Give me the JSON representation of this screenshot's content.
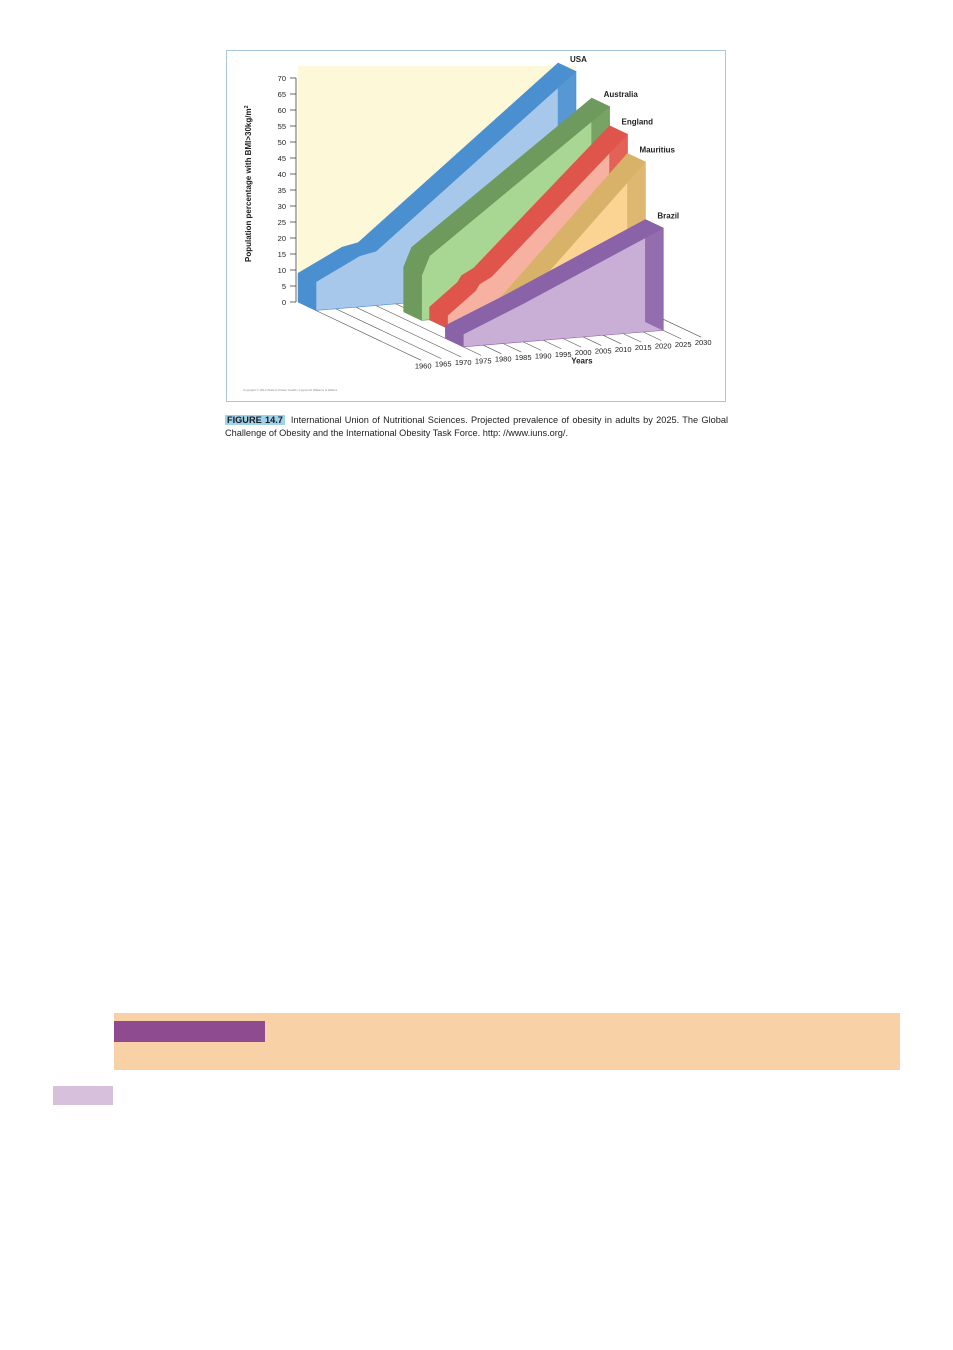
{
  "figure": {
    "label": "FIGURE 14.7",
    "caption": "International Union of Nutritional Sciences. Projected prevalence of obesity in adults by 2025. The Global Challenge of Obesity and the International Obesity Task Force. http: //www.iuns.org/.",
    "copyright": "Copyright © 2013 Wolters Kluwer Health | Lippincott Williams & Wilkins"
  },
  "chart_data": {
    "type": "area",
    "projection": "3d-depth",
    "ylabel": "Population percentage with BMI>30kg/m",
    "ylabel_superscript": "2",
    "xlabel": "Years",
    "ylim": [
      0,
      70
    ],
    "yticks": [
      0,
      5,
      10,
      15,
      20,
      25,
      30,
      35,
      40,
      45,
      50,
      55,
      60,
      65,
      70
    ],
    "x": [
      1960,
      1965,
      1970,
      1975,
      1980,
      1985,
      1990,
      1995,
      2000,
      2005,
      2010,
      2015,
      2020,
      2025,
      2030
    ],
    "series": [
      {
        "name": "USA",
        "color": "#a7c8ea",
        "edge": "#4a8fcf",
        "points": [
          [
            1960,
            9
          ],
          [
            1971,
            16
          ],
          [
            1975,
            17
          ],
          [
            2025,
            68
          ]
        ]
      },
      {
        "name": "Australia",
        "color": "#a8d793",
        "edge": "#6f9a5e",
        "points": [
          [
            1978,
            14
          ],
          [
            1980,
            20
          ],
          [
            2025,
            62
          ]
        ]
      },
      {
        "name": "England",
        "color": "#f6b1a1",
        "edge": "#e0554b",
        "points": [
          [
            1980,
            4
          ],
          [
            1987,
            11
          ],
          [
            1988,
            13
          ],
          [
            1991,
            15
          ],
          [
            2025,
            56
          ]
        ]
      },
      {
        "name": "Mauritius",
        "color": "#fbd494",
        "edge": "#d9b26a",
        "points": [
          [
            1987,
            0
          ],
          [
            2025,
            50
          ]
        ]
      },
      {
        "name": "Brazil",
        "color": "#c9aed5",
        "edge": "#8a62a8",
        "points": [
          [
            1975,
            4
          ],
          [
            1990,
            12
          ],
          [
            2025,
            32
          ]
        ]
      }
    ]
  }
}
